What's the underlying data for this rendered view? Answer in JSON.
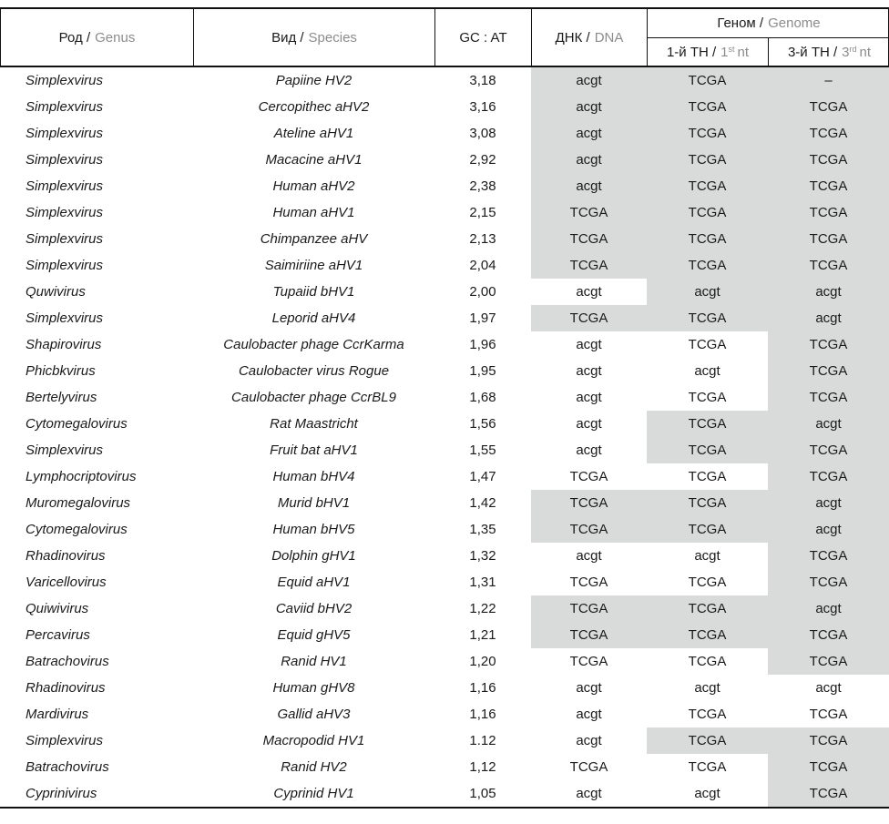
{
  "colors": {
    "highlight": "#d9dbda",
    "secondary_text": "#8c8c8c",
    "text": "#1a1a1a",
    "border": "#111111"
  },
  "header": {
    "genus": {
      "ru": "Род /",
      "en": "Genus"
    },
    "species": {
      "ru": "Вид /",
      "en": "Species"
    },
    "gc": {
      "label": "GC : AT"
    },
    "dna": {
      "ru": "ДНК /",
      "en": "DNA"
    },
    "genome": {
      "ru": "Геном /",
      "en": "Genome"
    },
    "nt1": {
      "ru": "1-й ТН /",
      "num": "1",
      "sup": "st",
      "rest": "nt"
    },
    "nt3": {
      "ru": "3-й ТН /",
      "num": "3",
      "sup": "rd",
      "rest": "nt"
    }
  },
  "rows": [
    {
      "genus": "Simplexvirus",
      "species": "Papiine HV2",
      "gc": "3,18",
      "dna": "acgt",
      "dna_hl": true,
      "nt1": "TCGA",
      "nt1_hl": true,
      "nt3": "–",
      "nt3_hl": true
    },
    {
      "genus": "Simplexvirus",
      "species": "Cercopithec aHV2",
      "gc": "3,16",
      "dna": "acgt",
      "dna_hl": true,
      "nt1": "TCGA",
      "nt1_hl": true,
      "nt3": "TCGA",
      "nt3_hl": true
    },
    {
      "genus": "Simplexvirus",
      "species": "Ateline aHV1",
      "gc": "3,08",
      "dna": "acgt",
      "dna_hl": true,
      "nt1": "TCGA",
      "nt1_hl": true,
      "nt3": "TCGA",
      "nt3_hl": true
    },
    {
      "genus": "Simplexvirus",
      "species": "Macacine aHV1",
      "gc": "2,92",
      "dna": "acgt",
      "dna_hl": true,
      "nt1": "TCGA",
      "nt1_hl": true,
      "nt3": "TCGA",
      "nt3_hl": true
    },
    {
      "genus": "Simplexvirus",
      "species": "Human aHV2",
      "gc": "2,38",
      "dna": "acgt",
      "dna_hl": true,
      "nt1": "TCGA",
      "nt1_hl": true,
      "nt3": "TCGA",
      "nt3_hl": true
    },
    {
      "genus": "Simplexvirus",
      "species": "Human aHV1",
      "gc": "2,15",
      "dna": "TCGA",
      "dna_hl": true,
      "nt1": "TCGA",
      "nt1_hl": true,
      "nt3": "TCGA",
      "nt3_hl": true
    },
    {
      "genus": "Simplexvirus",
      "species": "Chimpanzee aHV",
      "gc": "2,13",
      "dna": "TCGA",
      "dna_hl": true,
      "nt1": "TCGA",
      "nt1_hl": true,
      "nt3": "TCGA",
      "nt3_hl": true
    },
    {
      "genus": "Simplexvirus",
      "species": "Saimiriine aHV1",
      "gc": "2,04",
      "dna": "TCGA",
      "dna_hl": true,
      "nt1": "TCGA",
      "nt1_hl": true,
      "nt3": "TCGA",
      "nt3_hl": true
    },
    {
      "genus": "Quwivirus",
      "species": "Tupaiid bHV1",
      "gc": "2,00",
      "dna": "acgt",
      "dna_hl": false,
      "nt1": "acgt",
      "nt1_hl": true,
      "nt3": "acgt",
      "nt3_hl": true
    },
    {
      "genus": "Simplexvirus",
      "species": "Leporid aHV4",
      "gc": "1,97",
      "dna": "TCGA",
      "dna_hl": true,
      "nt1": "TCGA",
      "nt1_hl": true,
      "nt3": "acgt",
      "nt3_hl": true
    },
    {
      "genus": "Shapirovirus",
      "species": "Caulobacter phage CcrKarma",
      "gc": "1,96",
      "dna": "acgt",
      "dna_hl": false,
      "nt1": "TCGA",
      "nt1_hl": false,
      "nt3": "TCGA",
      "nt3_hl": true
    },
    {
      "genus": "Phicbkvirus",
      "species": "Caulobacter virus Rogue",
      "gc": "1,95",
      "dna": "acgt",
      "dna_hl": false,
      "nt1": "acgt",
      "nt1_hl": false,
      "nt3": "TCGA",
      "nt3_hl": true
    },
    {
      "genus": "Bertelyvirus",
      "species": "Caulobacter phage CcrBL9",
      "gc": "1,68",
      "dna": "acgt",
      "dna_hl": false,
      "nt1": "TCGA",
      "nt1_hl": false,
      "nt3": "TCGA",
      "nt3_hl": true
    },
    {
      "genus": "Cytomegalovirus",
      "species": "Rat Maastricht",
      "gc": "1,56",
      "dna": "acgt",
      "dna_hl": false,
      "nt1": "TCGA",
      "nt1_hl": true,
      "nt3": "acgt",
      "nt3_hl": true
    },
    {
      "genus": "Simplexvirus",
      "species": "Fruit bat aHV1",
      "gc": "1,55",
      "dna": "acgt",
      "dna_hl": false,
      "nt1": "TCGA",
      "nt1_hl": true,
      "nt3": "TCGA",
      "nt3_hl": true
    },
    {
      "genus": "Lymphocriptovirus",
      "species": "Human bHV4",
      "gc": "1,47",
      "dna": "TCGA",
      "dna_hl": false,
      "nt1": "TCGA",
      "nt1_hl": false,
      "nt3": "TCGA",
      "nt3_hl": true
    },
    {
      "genus": "Muromegalovirus",
      "species": "Murid bHV1",
      "gc": "1,42",
      "dna": "TCGA",
      "dna_hl": true,
      "nt1": "TCGA",
      "nt1_hl": true,
      "nt3": "acgt",
      "nt3_hl": true
    },
    {
      "genus": "Cytomegalovirus",
      "species": "Human bHV5",
      "gc": "1,35",
      "dna": "TCGA",
      "dna_hl": true,
      "nt1": "TCGA",
      "nt1_hl": true,
      "nt3": "acgt",
      "nt3_hl": true
    },
    {
      "genus": "Rhadinovirus",
      "species": "Dolphin gHV1",
      "gc": "1,32",
      "dna": "acgt",
      "dna_hl": false,
      "nt1": "acgt",
      "nt1_hl": false,
      "nt3": "TCGA",
      "nt3_hl": true
    },
    {
      "genus": "Varicellovirus",
      "species": "Equid aHV1",
      "gc": "1,31",
      "dna": "TCGA",
      "dna_hl": false,
      "nt1": "TCGA",
      "nt1_hl": false,
      "nt3": "TCGA",
      "nt3_hl": true
    },
    {
      "genus": "Quiwivirus",
      "species": "Caviid bHV2",
      "gc": "1,22",
      "dna": "TCGA",
      "dna_hl": true,
      "nt1": "TCGA",
      "nt1_hl": true,
      "nt3": "acgt",
      "nt3_hl": true
    },
    {
      "genus": "Percavirus",
      "species": "Equid gHV5",
      "gc": "1,21",
      "dna": "TCGA",
      "dna_hl": true,
      "nt1": "TCGA",
      "nt1_hl": true,
      "nt3": "TCGA",
      "nt3_hl": true
    },
    {
      "genus": "Batrachovirus",
      "species": "Ranid HV1",
      "gc": "1,20",
      "dna": "TCGA",
      "dna_hl": false,
      "nt1": "TCGA",
      "nt1_hl": false,
      "nt3": "TCGA",
      "nt3_hl": true
    },
    {
      "genus": "Rhadinovirus",
      "species": "Human gHV8",
      "gc": "1,16",
      "dna": "acgt",
      "dna_hl": false,
      "nt1": "acgt",
      "nt1_hl": false,
      "nt3": "acgt",
      "nt3_hl": false
    },
    {
      "genus": "Mardivirus",
      "species": "Gallid aHV3",
      "gc": "1,16",
      "dna": "acgt",
      "dna_hl": false,
      "nt1": "TCGA",
      "nt1_hl": false,
      "nt3": "TCGA",
      "nt3_hl": false
    },
    {
      "genus": "Simplexvirus",
      "species": "Macropodid HV1",
      "gc": "1.12",
      "dna": "acgt",
      "dna_hl": false,
      "nt1": "TCGA",
      "nt1_hl": true,
      "nt3": "TCGA",
      "nt3_hl": true
    },
    {
      "genus": "Batrachovirus",
      "species": "Ranid HV2",
      "gc": "1,12",
      "dna": "TCGA",
      "dna_hl": false,
      "nt1": "TCGA",
      "nt1_hl": false,
      "nt3": "TCGA",
      "nt3_hl": true
    },
    {
      "genus": "Cyprinivirus",
      "species": "Cyprinid HV1",
      "gc": "1,05",
      "dna": "acgt",
      "dna_hl": false,
      "nt1": "acgt",
      "nt1_hl": false,
      "nt3": "TCGA",
      "nt3_hl": true
    }
  ]
}
